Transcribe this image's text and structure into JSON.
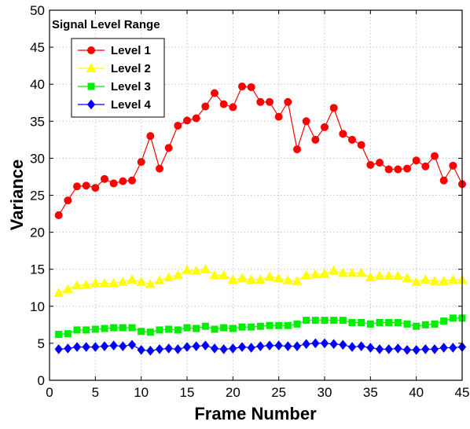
{
  "chart_data": {
    "type": "line",
    "xlabel": "Frame Number",
    "ylabel": "Variance",
    "xlim": [
      0,
      45
    ],
    "ylim": [
      0,
      50
    ],
    "xticks": [
      0,
      5,
      10,
      15,
      20,
      25,
      30,
      35,
      40,
      45
    ],
    "yticks": [
      0,
      5,
      10,
      15,
      20,
      25,
      30,
      35,
      40,
      45,
      50
    ],
    "grid": true,
    "annotation": "Signal Level Range",
    "legend_position": "top-left",
    "x": [
      1,
      2,
      3,
      4,
      5,
      6,
      7,
      8,
      9,
      10,
      11,
      12,
      13,
      14,
      15,
      16,
      17,
      18,
      19,
      20,
      21,
      22,
      23,
      24,
      25,
      26,
      27,
      28,
      29,
      30,
      31,
      32,
      33,
      34,
      35,
      36,
      37,
      38,
      39,
      40,
      41,
      42,
      43,
      44,
      45
    ],
    "series": [
      {
        "name": "Level 1",
        "color": "#ff0000",
        "marker": "circle",
        "values": [
          22.3,
          24.3,
          26.2,
          26.3,
          26.0,
          27.2,
          26.6,
          26.9,
          27.0,
          29.5,
          33.0,
          28.6,
          31.4,
          34.4,
          35.1,
          35.4,
          37.0,
          38.8,
          37.3,
          36.9,
          39.7,
          39.6,
          37.6,
          37.6,
          35.6,
          37.6,
          31.2,
          35.0,
          32.5,
          34.2,
          36.8,
          33.3,
          32.5,
          31.8,
          29.1,
          29.4,
          28.5,
          28.5,
          28.6,
          29.7,
          28.9,
          30.3,
          27.0,
          29.0,
          26.5
        ]
      },
      {
        "name": "Level 2",
        "color": "#ffff00",
        "marker": "triangle",
        "values": [
          11.8,
          12.3,
          12.8,
          12.9,
          13.1,
          13.1,
          13.1,
          13.3,
          13.6,
          13.3,
          13.0,
          13.5,
          13.9,
          14.2,
          14.9,
          14.8,
          15.0,
          14.2,
          14.2,
          13.6,
          13.8,
          13.6,
          13.6,
          14.0,
          13.8,
          13.5,
          13.4,
          14.2,
          14.3,
          14.4,
          14.8,
          14.5,
          14.5,
          14.5,
          13.9,
          14.1,
          14.1,
          14.1,
          13.8,
          13.3,
          13.6,
          13.4,
          13.4,
          13.6,
          13.6
        ]
      },
      {
        "name": "Level 3",
        "color": "#00ee00",
        "marker": "square",
        "values": [
          6.2,
          6.3,
          6.8,
          6.8,
          6.9,
          7.0,
          7.1,
          7.1,
          7.1,
          6.6,
          6.5,
          6.8,
          6.9,
          6.8,
          7.1,
          7.0,
          7.3,
          6.9,
          7.1,
          7.0,
          7.2,
          7.2,
          7.3,
          7.4,
          7.4,
          7.4,
          7.6,
          8.1,
          8.1,
          8.1,
          8.1,
          8.1,
          7.8,
          7.8,
          7.6,
          7.8,
          7.8,
          7.8,
          7.6,
          7.3,
          7.5,
          7.6,
          8.0,
          8.4,
          8.4
        ]
      },
      {
        "name": "Level 4",
        "color": "#0000ff",
        "marker": "diamond",
        "values": [
          4.2,
          4.3,
          4.5,
          4.5,
          4.5,
          4.6,
          4.7,
          4.6,
          4.8,
          4.1,
          4.0,
          4.2,
          4.3,
          4.2,
          4.5,
          4.6,
          4.7,
          4.3,
          4.2,
          4.3,
          4.5,
          4.4,
          4.6,
          4.7,
          4.7,
          4.6,
          4.6,
          4.9,
          5.0,
          5.0,
          4.9,
          4.8,
          4.5,
          4.6,
          4.4,
          4.2,
          4.2,
          4.3,
          4.1,
          4.1,
          4.2,
          4.2,
          4.4,
          4.4,
          4.5
        ]
      }
    ]
  }
}
